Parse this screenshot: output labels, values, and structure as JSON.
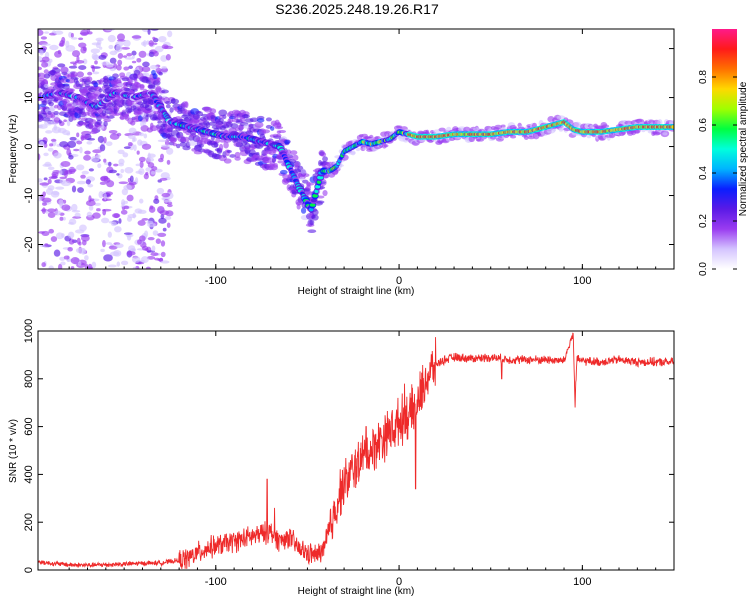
{
  "title": "S236.2025.248.19.26.R17",
  "chart_data": [
    {
      "type": "heatmap",
      "name": "spectrogram",
      "xlabel": "Height of straight line (km)",
      "ylabel": "Frequency (Hz)",
      "xlim": [
        -197,
        150
      ],
      "ylim": [
        -25,
        24
      ],
      "xticks": [
        -100,
        0,
        100
      ],
      "yticks": [
        -20,
        -10,
        0,
        10,
        20
      ],
      "xtick_labels": [
        "-100",
        "0",
        "100"
      ],
      "ytick_labels": [
        "-20",
        "-10",
        "0",
        "10",
        "20"
      ],
      "ridge": {
        "x": [
          -197,
          -185,
          -175,
          -165,
          -155,
          -145,
          -135,
          -125,
          -115,
          -105,
          -95,
          -85,
          -75,
          -65,
          -55,
          -48,
          -42,
          -38,
          -34,
          -30,
          -25,
          -20,
          -15,
          -10,
          -5,
          0,
          10,
          20,
          30,
          40,
          50,
          60,
          70,
          80,
          90,
          95,
          100,
          110,
          120,
          130,
          140,
          150
        ],
        "y": [
          10,
          11,
          10,
          8,
          11,
          10,
          11,
          5,
          4,
          3,
          2,
          2,
          1,
          0,
          -8,
          -13,
          -5,
          -5,
          -4,
          -1,
          0,
          1,
          0.5,
          1,
          1.5,
          3,
          2,
          2,
          2.5,
          2.5,
          2.5,
          3,
          3,
          4,
          5,
          3.5,
          3,
          3,
          3.5,
          4,
          4,
          4
        ]
      },
      "colorbar": {
        "label": "Normalized spectral amplitude",
        "range": [
          0,
          1
        ],
        "ticks": [
          0.0,
          0.2,
          0.4,
          0.6,
          0.8
        ],
        "tick_labels": [
          "0.0",
          "0.2",
          "0.4",
          "0.6",
          "0.8"
        ],
        "colormap": [
          "#ffffff",
          "#d4c4ff",
          "#9a3cf0",
          "#5a1ae6",
          "#0a1eff",
          "#00b4ff",
          "#00ffdc",
          "#00ff40",
          "#a0ff00",
          "#ffd800",
          "#ff7000",
          "#ff1a1a",
          "#ff1a8a"
        ]
      }
    },
    {
      "type": "line",
      "name": "snr",
      "xlabel": "Height of straight line (km)",
      "ylabel": "SNR (10 * v/v)",
      "xlim": [
        -197,
        150
      ],
      "ylim": [
        0,
        1000
      ],
      "xticks": [
        -100,
        0,
        100
      ],
      "yticks": [
        0,
        200,
        400,
        600,
        800,
        1000
      ],
      "xtick_labels": [
        "-100",
        "0",
        "100"
      ],
      "ytick_labels": [
        "0",
        "200",
        "400",
        "600",
        "800",
        "1000"
      ],
      "color": "#ee2a2a",
      "series": [
        {
          "name": "SNR",
          "x": [
            -197,
            -190,
            -180,
            -170,
            -160,
            -150,
            -140,
            -130,
            -125,
            -120,
            -115,
            -110,
            -105,
            -100,
            -95,
            -90,
            -85,
            -80,
            -75,
            -70,
            -65,
            -60,
            -55,
            -50,
            -45,
            -40,
            -36,
            -32,
            -28,
            -25,
            -22,
            -18,
            -15,
            -12,
            -8,
            -5,
            -2,
            0,
            3,
            6,
            10,
            15,
            20,
            25,
            30,
            40,
            50,
            60,
            70,
            80,
            90,
            95,
            96,
            97,
            100,
            110,
            120,
            130,
            140,
            150
          ],
          "y": [
            35,
            28,
            22,
            20,
            22,
            25,
            28,
            30,
            35,
            40,
            50,
            70,
            90,
            100,
            110,
            120,
            130,
            140,
            150,
            160,
            120,
            140,
            90,
            70,
            60,
            100,
            220,
            330,
            380,
            420,
            450,
            480,
            500,
            530,
            560,
            580,
            600,
            620,
            640,
            650,
            700,
            800,
            860,
            880,
            890,
            885,
            890,
            880,
            880,
            880,
            875,
            990,
            700,
            880,
            875,
            870,
            880,
            870,
            870,
            870
          ],
          "spikes": [
            [
              -72,
              380
            ],
            [
              -68,
              260
            ],
            [
              -30,
              430
            ],
            [
              -18,
              600
            ],
            [
              -10,
              590
            ],
            [
              -4,
              650
            ],
            [
              3,
              780
            ],
            [
              9,
              340
            ],
            [
              56,
              800
            ],
            [
              96,
              680
            ]
          ]
        }
      ]
    }
  ]
}
